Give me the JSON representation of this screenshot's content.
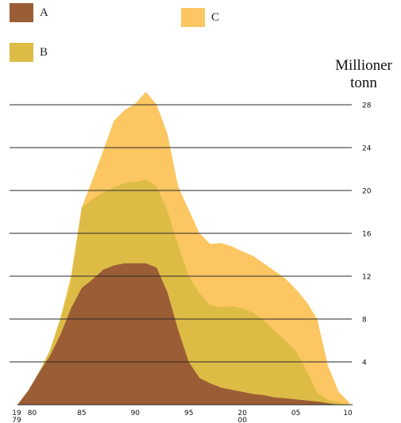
{
  "legend": [
    {
      "key": "A",
      "label": "A",
      "color": "#9b5d35"
    },
    {
      "key": "C",
      "label": "C",
      "color": "#fcc662"
    },
    {
      "key": "B",
      "label": "B",
      "color": "#ddbc46"
    }
  ],
  "chart_data": {
    "type": "area",
    "stacked": true,
    "title": "",
    "xlabel": "",
    "ylabel": "Millioner tonn",
    "ylabel_lines": [
      "Millioner",
      "tonn"
    ],
    "xlim": [
      1979,
      2010
    ],
    "ylim": [
      0,
      28
    ],
    "grid": true,
    "legend_placement": "top-left",
    "x_ticks": [
      {
        "v": 1979,
        "lines": [
          "19",
          "79"
        ]
      },
      {
        "v": 1980,
        "lines": [
          "80"
        ]
      },
      {
        "v": 1985,
        "lines": [
          "85"
        ]
      },
      {
        "v": 1990,
        "lines": [
          "90"
        ]
      },
      {
        "v": 1995,
        "lines": [
          "95"
        ]
      },
      {
        "v": 2000,
        "lines": [
          "20",
          "00"
        ]
      },
      {
        "v": 2005,
        "lines": [
          "05"
        ]
      },
      {
        "v": 2010,
        "lines": [
          "10"
        ]
      }
    ],
    "y_ticks": [
      4,
      8,
      12,
      16,
      20,
      24,
      28
    ],
    "x": [
      1979,
      1980,
      1981,
      1982,
      1983,
      1984,
      1985,
      1986,
      1987,
      1988,
      1989,
      1990,
      1991,
      1992,
      1993,
      1994,
      1995,
      1996,
      1997,
      1998,
      1999,
      2000,
      2001,
      2002,
      2003,
      2004,
      2005,
      2006,
      2007,
      2008,
      2009,
      2010
    ],
    "series": [
      {
        "name": "A",
        "color": "#9b5d35",
        "values": [
          0,
          1.3,
          3.0,
          4.5,
          6.5,
          9.0,
          10.9,
          11.7,
          12.6,
          13.0,
          13.2,
          13.2,
          13.2,
          12.8,
          10.5,
          7.0,
          4.0,
          2.5,
          2.0,
          1.6,
          1.4,
          1.2,
          1.0,
          0.9,
          0.7,
          0.6,
          0.5,
          0.4,
          0.3,
          0.15,
          0,
          0
        ]
      },
      {
        "name": "B",
        "color": "#ddbc46",
        "values": [
          0,
          0,
          0,
          0.5,
          1.5,
          2.5,
          7.5,
          7.5,
          7.2,
          7.3,
          7.5,
          7.6,
          7.8,
          7.6,
          7.6,
          7.9,
          8.0,
          7.9,
          7.3,
          7.5,
          7.8,
          7.8,
          7.6,
          7.0,
          6.2,
          5.4,
          4.5,
          2.8,
          0.8,
          0.3,
          0.2,
          0
        ]
      },
      {
        "name": "C",
        "color": "#fcc662",
        "values": [
          0,
          0,
          0,
          0,
          0,
          0.5,
          0,
          1.8,
          3.9,
          6.2,
          6.8,
          7.3,
          8.2,
          7.6,
          7.2,
          5.5,
          6.2,
          5.6,
          5.7,
          6.0,
          5.6,
          5.3,
          5.3,
          5.3,
          5.6,
          5.8,
          5.8,
          6.4,
          6.9,
          3.2,
          1.0,
          0.2
        ]
      }
    ]
  }
}
